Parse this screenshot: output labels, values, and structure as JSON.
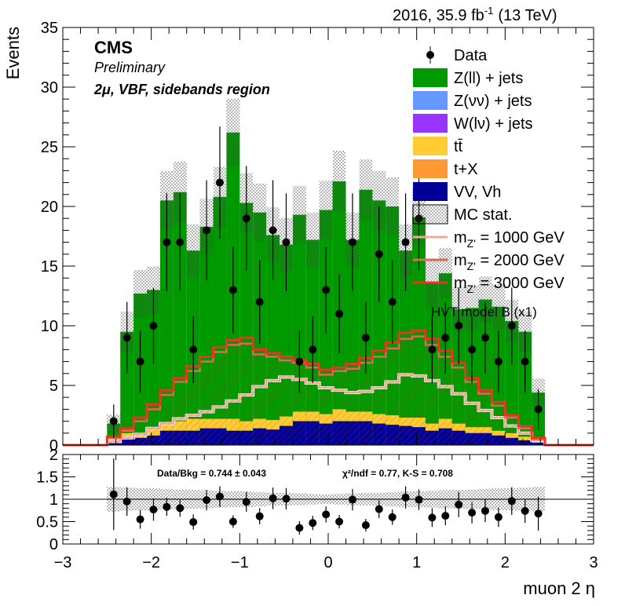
{
  "header": {
    "lumi": "2016, 35.9 fb",
    "lumi_exp": "-1",
    "energy": "(13 TeV)",
    "cms": "CMS",
    "preliminary": "Preliminary",
    "region": "2μ, VBF, sidebands region"
  },
  "ratio_text": {
    "data_bkg": "Data/Bkg = 0.744 ± 0.043",
    "chi2": "χ²/ndf = 0.77,   K-S = 0.708"
  },
  "legend": {
    "entries": [
      {
        "label": "Data",
        "style": "marker",
        "color": "#000000"
      },
      {
        "label": "Z(ll) + jets",
        "style": "fill",
        "color": "#009900"
      },
      {
        "label": "Z(νν) + jets",
        "style": "fill",
        "color": "#6699ff"
      },
      {
        "label": "W(lν) + jets",
        "style": "fill",
        "color": "#9933ff"
      },
      {
        "label": "tt̄",
        "style": "fill",
        "color": "#ffcc33"
      },
      {
        "label": "t+X",
        "style": "fill",
        "color": "#ff9933"
      },
      {
        "label": "VV, Vh",
        "style": "fill",
        "color": "#000099"
      },
      {
        "label": "MC stat.",
        "style": "hatch",
        "color": "#555555"
      },
      {
        "label": "m",
        "sub": "Z'",
        "suffix": " = 1000 GeV",
        "style": "line",
        "color": "#f0a898"
      },
      {
        "label": "m",
        "sub": "Z'",
        "suffix": " = 2000 GeV",
        "style": "line",
        "color": "#e06a5a"
      },
      {
        "label": "m",
        "sub": "Z'",
        "suffix": " = 3000 GeV",
        "style": "line",
        "color": "#ee3322"
      }
    ],
    "model": "HVT model B (x1)"
  },
  "chart_data": [
    {
      "type": "bar",
      "title": "",
      "ylabel": "Events",
      "xlim": [
        -3,
        3
      ],
      "ylim": [
        0,
        35
      ],
      "yticks": [
        0,
        5,
        10,
        15,
        20,
        25,
        30,
        35
      ],
      "bin_edges": [
        -2.5,
        -2.35,
        -2.2,
        -2.05,
        -1.9,
        -1.75,
        -1.6,
        -1.45,
        -1.3,
        -1.15,
        -1.0,
        -0.85,
        -0.7,
        -0.55,
        -0.4,
        -0.25,
        -0.1,
        0.05,
        0.2,
        0.35,
        0.5,
        0.65,
        0.8,
        0.95,
        1.1,
        1.25,
        1.4,
        1.55,
        1.7,
        1.85,
        2.0,
        2.15,
        2.3,
        2.45
      ],
      "background_total": [
        1.8,
        9.5,
        12.7,
        13.0,
        20.5,
        21.2,
        16.3,
        18.3,
        20.8,
        26.2,
        20.3,
        19.5,
        17.6,
        16.8,
        19.3,
        17.2,
        19.7,
        22.1,
        17.2,
        21.4,
        20.5,
        20.0,
        16.3,
        19.1,
        13.6,
        14.4,
        11.4,
        11.5,
        12.2,
        11.6,
        10.4,
        9.5,
        4.4
      ],
      "background_vv": [
        0.4,
        0.6,
        0.6,
        0.8,
        1.2,
        1.2,
        1.2,
        1.4,
        1.4,
        1.2,
        1.2,
        1.4,
        1.3,
        1.6,
        2.0,
        2.0,
        1.8,
        2.0,
        2.0,
        2.0,
        1.8,
        1.7,
        1.6,
        1.5,
        1.2,
        1.4,
        1.2,
        1.0,
        1.0,
        0.8,
        0.6,
        0.4,
        0.2
      ],
      "background_ttbar": [
        0.2,
        0.4,
        0.4,
        0.6,
        0.6,
        0.8,
        1.0,
        0.8,
        0.8,
        1.0,
        0.8,
        0.8,
        0.8,
        0.8,
        0.8,
        0.8,
        0.8,
        1.0,
        0.8,
        0.8,
        0.8,
        0.8,
        0.7,
        0.8,
        0.6,
        0.8,
        0.6,
        0.5,
        0.5,
        0.4,
        0.4,
        0.3,
        0.2
      ],
      "series": [
        {
          "name": "Data",
          "x": [
            -2.425,
            -2.275,
            -2.125,
            -1.975,
            -1.825,
            -1.675,
            -1.525,
            -1.375,
            -1.225,
            -1.075,
            -0.925,
            -0.775,
            -0.625,
            -0.475,
            -0.325,
            -0.175,
            -0.025,
            0.125,
            0.275,
            0.425,
            0.575,
            0.725,
            0.875,
            1.025,
            1.175,
            1.325,
            1.475,
            1.625,
            1.775,
            1.925,
            2.075,
            2.225,
            2.375
          ],
          "y": [
            2,
            9,
            7,
            10,
            17,
            17,
            8,
            18,
            22,
            13,
            19,
            12,
            18,
            17,
            7,
            8,
            13,
            11,
            17,
            9,
            16,
            12,
            17,
            19,
            8,
            9,
            10,
            8,
            9,
            7,
            10,
            7,
            3
          ],
          "err": [
            1.4,
            3.0,
            2.6,
            3.2,
            4.1,
            4.1,
            2.8,
            4.2,
            4.7,
            3.6,
            4.4,
            3.5,
            4.2,
            4.1,
            2.6,
            2.8,
            3.6,
            3.3,
            4.1,
            3.0,
            4.0,
            3.5,
            4.1,
            4.4,
            2.8,
            3.0,
            3.2,
            2.8,
            3.0,
            2.6,
            3.2,
            2.6,
            1.7
          ]
        },
        {
          "name": "m_Z' = 1000 GeV",
          "y": [
            0.3,
            0.6,
            0.9,
            1.4,
            1.8,
            2.2,
            2.5,
            2.8,
            3.2,
            3.7,
            4.2,
            4.9,
            5.4,
            5.7,
            5.5,
            5.2,
            4.8,
            4.6,
            4.4,
            4.5,
            4.8,
            5.3,
            5.9,
            5.8,
            5.4,
            4.9,
            4.3,
            3.5,
            2.9,
            2.3,
            1.6,
            1.0,
            0.4
          ]
        },
        {
          "name": "m_Z' = 2000 GeV",
          "y": [
            0.6,
            1.2,
            2.0,
            3.0,
            4.2,
            5.3,
            6.2,
            7.0,
            7.8,
            8.4,
            8.5,
            7.6,
            7.4,
            7.1,
            6.9,
            6.5,
            5.9,
            6.2,
            6.4,
            6.9,
            7.4,
            8.1,
            8.9,
            9.1,
            8.4,
            7.4,
            6.5,
            5.3,
            4.3,
            3.3,
            2.3,
            1.4,
            0.5
          ]
        },
        {
          "name": "m_Z' = 3000 GeV",
          "y": [
            0.7,
            1.4,
            2.3,
            3.4,
            4.6,
            5.6,
            6.6,
            7.4,
            8.2,
            8.8,
            9.0,
            8.0,
            7.7,
            7.4,
            7.1,
            6.8,
            6.3,
            6.5,
            6.8,
            7.3,
            7.9,
            8.6,
            9.4,
            9.6,
            8.9,
            7.9,
            6.9,
            5.6,
            4.6,
            3.6,
            2.5,
            1.6,
            0.6
          ]
        }
      ]
    },
    {
      "type": "scatter",
      "xlabel": "muon 2 η",
      "xlim": [
        -3,
        3
      ],
      "xticks": [
        -3,
        -2,
        -1,
        0,
        1,
        2,
        3
      ],
      "ylim": [
        0,
        2
      ],
      "yticks": [
        0,
        0.5,
        1,
        1.5,
        2
      ],
      "series": [
        {
          "name": "Data/Bkg",
          "y": [
            1.11,
            0.95,
            0.55,
            0.77,
            0.83,
            0.8,
            0.49,
            0.98,
            1.06,
            0.5,
            0.94,
            0.62,
            1.02,
            1.01,
            0.36,
            0.47,
            0.66,
            0.5,
            0.99,
            0.42,
            0.78,
            0.6,
            1.04,
            0.99,
            0.59,
            0.63,
            0.88,
            0.7,
            0.74,
            0.6,
            0.96,
            0.74,
            0.68
          ],
          "err": [
            0.8,
            0.32,
            0.21,
            0.25,
            0.2,
            0.19,
            0.17,
            0.23,
            0.23,
            0.14,
            0.22,
            0.18,
            0.24,
            0.24,
            0.15,
            0.16,
            0.18,
            0.15,
            0.24,
            0.14,
            0.2,
            0.17,
            0.25,
            0.23,
            0.21,
            0.21,
            0.28,
            0.24,
            0.25,
            0.22,
            0.31,
            0.27,
            0.38
          ]
        }
      ]
    }
  ]
}
